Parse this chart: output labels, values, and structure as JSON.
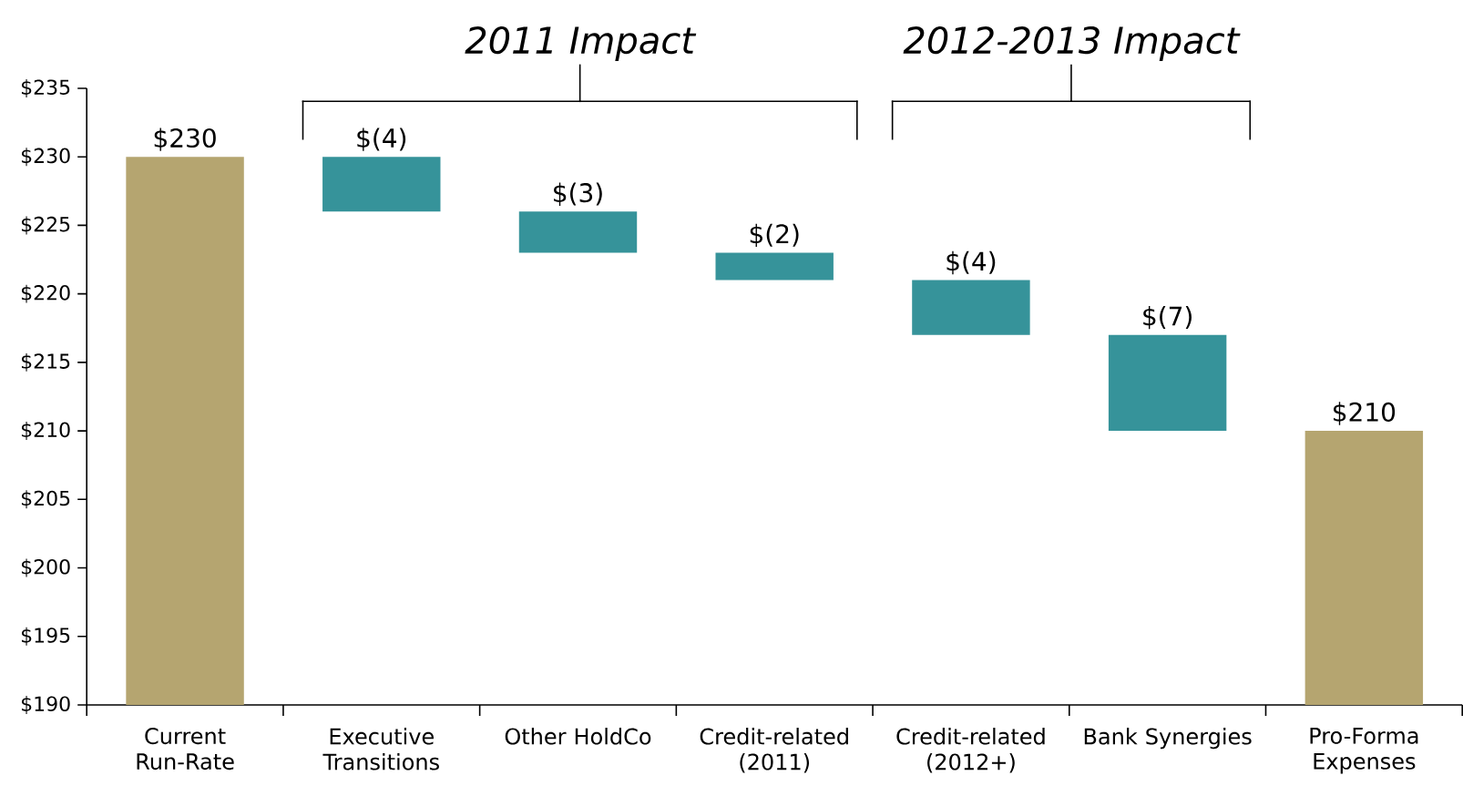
{
  "chart_data": {
    "type": "bar",
    "categories": [
      "Current Run-Rate",
      "Executive Transitions",
      "Other HoldCo",
      "Credit-related (2011)",
      "Credit-related (2012+)",
      "Bank Synergies",
      "Pro-Forma Expenses"
    ],
    "values": [
      230,
      -4,
      -3,
      -2,
      -4,
      -7,
      210
    ],
    "base": [
      0,
      230,
      226,
      223,
      221,
      217,
      0
    ],
    "colors": [
      "#b5a570",
      "#36939a",
      "#36939a",
      "#36939a",
      "#36939a",
      "#36939a",
      "#b5a570"
    ],
    "value_labels": [
      "$230",
      "$(4)",
      "$(3)",
      "$(2)",
      "$(4)",
      "$(7)",
      "$210"
    ],
    "ylim": [
      190,
      235
    ],
    "yticks": [
      {
        "value": 190,
        "label": "$190"
      },
      {
        "value": 195,
        "label": "$195"
      },
      {
        "value": 200,
        "label": "$200"
      },
      {
        "value": 205,
        "label": "$205"
      },
      {
        "value": 210,
        "label": "$210"
      },
      {
        "value": 215,
        "label": "$215"
      },
      {
        "value": 220,
        "label": "$220"
      },
      {
        "value": 225,
        "label": "$225"
      },
      {
        "value": 230,
        "label": "$230"
      },
      {
        "value": 235,
        "label": "$235"
      }
    ],
    "annotations": [
      "2011 Impact",
      "2012-2013 Impact"
    ],
    "grid": false
  }
}
